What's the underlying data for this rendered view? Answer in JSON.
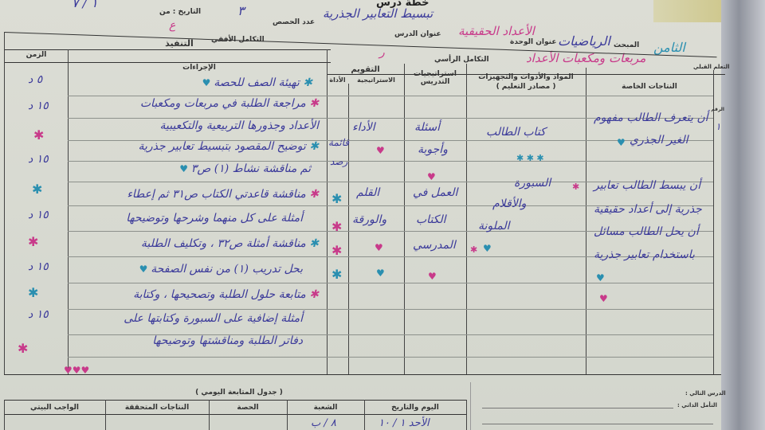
{
  "header": {
    "title": "خطة درس",
    "date_label": "التاريخ : من",
    "date_value": "١ / ٧",
    "lessons_count_label": "عدد الحصص",
    "lessons_count_value": "٣",
    "lesson_title_label": "عنوان الدرس",
    "lesson_title_value": "تبسيط التعابير الجذرية",
    "unit_title_label": "عنوان الوحدة",
    "unit_title_value": "الأعداد الحقيقية",
    "subject_label": "المبحث",
    "subject_value": "الرياضيات",
    "grade_value": "الثامن",
    "horizontal_integration_label": "التكامل الأفقي",
    "horizontal_integration_value": "ع",
    "vertical_integration_label": "التكامل الرأسي",
    "vertical_integration_value": "مربعات ومكعبات الأعداد",
    "prior_learning_label": "التعلم القبلي",
    "marks": [
      "ر"
    ]
  },
  "table": {
    "execution_label": "التنفيذ",
    "columns": {
      "time": "الزمن",
      "procedures": "الإجراءات",
      "evaluation": "التقويم",
      "eval_tool": "الأداة",
      "eval_strategy": "الاستراتيجية",
      "teaching_strategies": "استراتيجيات التدريس",
      "materials": "المواد والأدوات والتجهيزات",
      "materials_sub": "( مصادر التعليم )",
      "outcomes": "النتاجات الخاصة",
      "number": "الرقم"
    },
    "times": [
      "٥ د",
      "١٥ د",
      "١٥ د",
      "١٥ د",
      "١٥ د",
      "١٥ د"
    ],
    "procedures": [
      "تهيئة الصف للحصة",
      "مراجعة الطلبة في مربعات ومكعبات",
      "الأعداد وجذورها التربيعية والتكعيبية",
      "توضيح المقصود بتبسيط تعابير جذرية",
      "ثم مناقشة نشاط (١) ص٣",
      "مناقشة قاعدتي الكتاب ص٣١ ثم إعطاء",
      "أمثلة على كل منهما وشرحها وتوضيحها",
      "مناقشة أمثلة ص٣٢ ، وتكليف الطلبة",
      "بحل تدريب (١) من نفس الصفحة",
      "متابعة حلول الطلبة وتصحيحها ، وكتابة",
      "أمثلة إضافية على السبورة وكتابتها على",
      "دفاتر الطلبة ومناقشتها وتوضيحها"
    ],
    "eval_tool": [
      "قائمة",
      "رصد"
    ],
    "eval_strategy": [
      "الأداء",
      "القلم",
      "والورقة"
    ],
    "teaching_strategies": [
      "أسئلة",
      "وأجوبة",
      "العمل في",
      "الكتاب",
      "المدرسي"
    ],
    "materials": [
      "كتاب الطالب",
      "السبورة",
      "والأقلام",
      "الملونة"
    ],
    "outcomes": [
      "أن يتعرف الطالب مفهوم",
      "الغير الجذري",
      "أن يبسط الطالب تعابير",
      "جذرية إلى أعداد حقيقية",
      "أن يحل الطالب مسائل",
      "باستخدام تعابير جذرية"
    ],
    "row_number": "١"
  },
  "followup": {
    "title": "( جدول المتابعة اليومي )",
    "columns": [
      "اليوم والتاريخ",
      "الشعبة",
      "الحصة",
      "النتاجات المتحققة",
      "الواجب البيتي"
    ],
    "first_row": [
      "الأحد ١ / ١٠",
      "٨ / ب"
    ]
  },
  "side_notes": {
    "next_lesson_label": "الدرس التالي :",
    "reflection_label": "التأمل الذاتي :"
  },
  "colors": {
    "ink_blue": "#3b3a9a",
    "ink_pink": "#c83a8a",
    "ink_teal": "#2a8fb0",
    "paper": "#d8d9d2"
  }
}
